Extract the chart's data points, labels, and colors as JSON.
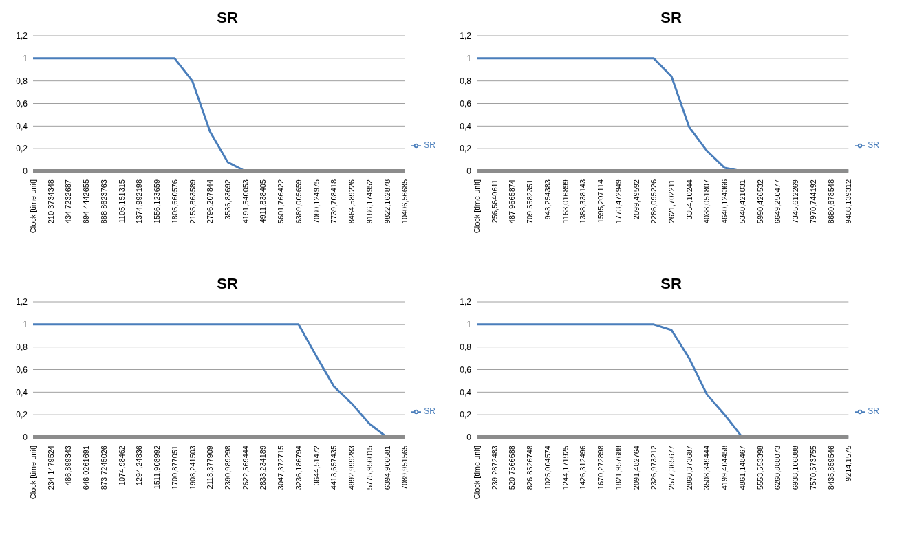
{
  "chart_data": [
    {
      "type": "line",
      "title": "SR",
      "categories": [
        "Clock [time unit]",
        "210,3734348",
        "434,7232687",
        "694,4442655",
        "888,8623763",
        "1105,151315",
        "1374,992198",
        "1556,123659",
        "1805,660576",
        "2155,863589",
        "2796,207844",
        "3536,83692",
        "4191,540053",
        "4911,838405",
        "5601,766422",
        "6389,005659",
        "7080,124975",
        "7739,708418",
        "8464,589226",
        "9186,174952",
        "9822,162878",
        "10406,56685"
      ],
      "series": [
        {
          "name": "SR",
          "color": "#4a7ebb",
          "values": [
            1,
            1,
            1,
            1,
            1,
            1,
            1,
            1,
            1,
            0.8,
            0.35,
            0.08,
            0,
            0,
            0,
            0,
            0,
            0,
            0,
            0,
            0,
            0
          ]
        }
      ],
      "ylim": [
        0,
        1.2
      ],
      "yticks": [
        {
          "value": 0,
          "label": "0"
        },
        {
          "value": 0.2,
          "label": "0,2"
        },
        {
          "value": 0.4,
          "label": "0,4"
        },
        {
          "value": 0.6,
          "label": "0,6"
        },
        {
          "value": 0.8,
          "label": "0,8"
        },
        {
          "value": 1,
          "label": "1"
        },
        {
          "value": 1.2,
          "label": "1,2"
        }
      ],
      "grid": "y",
      "legend": "right",
      "marker": "none"
    },
    {
      "type": "line",
      "title": "SR",
      "categories": [
        "Clock [time unit]",
        "256,5640611",
        "487,9665874",
        "709,5582351",
        "943,254383",
        "1163,016899",
        "1388,338143",
        "1595,207114",
        "1773,472949",
        "2099,49592",
        "2286,095226",
        "2621,702211",
        "3354,10244",
        "4038,051807",
        "4640,124366",
        "5340,421031",
        "5990,426532",
        "6649,250477",
        "7345,612269",
        "7970,744192",
        "8680,678548",
        "9408,139312"
      ],
      "series": [
        {
          "name": "SR",
          "color": "#4a7ebb",
          "values": [
            1,
            1,
            1,
            1,
            1,
            1,
            1,
            1,
            1,
            1,
            1,
            0.84,
            0.39,
            0.18,
            0.03,
            0,
            0,
            0,
            0,
            0,
            0,
            0
          ]
        }
      ],
      "ylim": [
        0,
        1.2
      ],
      "yticks": [
        {
          "value": 0,
          "label": "0"
        },
        {
          "value": 0.2,
          "label": "0,2"
        },
        {
          "value": 0.4,
          "label": "0,4"
        },
        {
          "value": 0.6,
          "label": "0,6"
        },
        {
          "value": 0.8,
          "label": "0,8"
        },
        {
          "value": 1,
          "label": "1"
        },
        {
          "value": 1.2,
          "label": "1,2"
        }
      ],
      "grid": "y",
      "legend": "right",
      "marker": "none"
    },
    {
      "type": "line",
      "title": "SR",
      "categories": [
        "Clock [time unit]",
        "234,1479524",
        "486,899343",
        "646,0261691",
        "873,7245026",
        "1074,98462",
        "1294,24836",
        "1511,908992",
        "1700,877051",
        "1908,241503",
        "2118,377909",
        "2390,989298",
        "2622,569444",
        "2833,234189",
        "3047,372715",
        "3236,186794",
        "3644,51472",
        "4413,657435",
        "4992,999283",
        "5775,956015",
        "6394,906581",
        "7089,951565"
      ],
      "series": [
        {
          "name": "SR",
          "color": "#4a7ebb",
          "values": [
            1,
            1,
            1,
            1,
            1,
            1,
            1,
            1,
            1,
            1,
            1,
            1,
            1,
            1,
            1,
            1,
            0.72,
            0.45,
            0.3,
            0.12,
            0,
            0
          ]
        }
      ],
      "ylim": [
        0,
        1.2
      ],
      "yticks": [
        {
          "value": 0,
          "label": "0"
        },
        {
          "value": 0.2,
          "label": "0,2"
        },
        {
          "value": 0.4,
          "label": "0,4"
        },
        {
          "value": 0.6,
          "label": "0,6"
        },
        {
          "value": 0.8,
          "label": "0,8"
        },
        {
          "value": 1,
          "label": "1"
        },
        {
          "value": 1.2,
          "label": "1,2"
        }
      ],
      "grid": "y",
      "legend": "right",
      "marker": "none"
    },
    {
      "type": "line",
      "title": "SR",
      "categories": [
        "Clock [time unit]",
        "239,2872483",
        "520,7566688",
        "826,8526748",
        "1025,004574",
        "1244,171925",
        "1426,312496",
        "1670,272898",
        "1821,957688",
        "2091,482764",
        "2326,973212",
        "2577,365677",
        "2860,373687",
        "3508,349444",
        "4199,404458",
        "4861,148467",
        "5553,553398",
        "6260,888073",
        "6938,106888",
        "7570,573755",
        "8435,859546",
        "9214,1575"
      ],
      "series": [
        {
          "name": "SR",
          "color": "#4a7ebb",
          "values": [
            1,
            1,
            1,
            1,
            1,
            1,
            1,
            1,
            1,
            1,
            1,
            0.95,
            0.7,
            0.38,
            0.2,
            0,
            0,
            0,
            0,
            0,
            0,
            0
          ]
        }
      ],
      "ylim": [
        0,
        1.2
      ],
      "yticks": [
        {
          "value": 0,
          "label": "0"
        },
        {
          "value": 0.2,
          "label": "0,2"
        },
        {
          "value": 0.4,
          "label": "0,4"
        },
        {
          "value": 0.6,
          "label": "0,6"
        },
        {
          "value": 0.8,
          "label": "0,8"
        },
        {
          "value": 1,
          "label": "1"
        },
        {
          "value": 1.2,
          "label": "1,2"
        }
      ],
      "grid": "y",
      "legend": "right",
      "marker": "none"
    }
  ]
}
